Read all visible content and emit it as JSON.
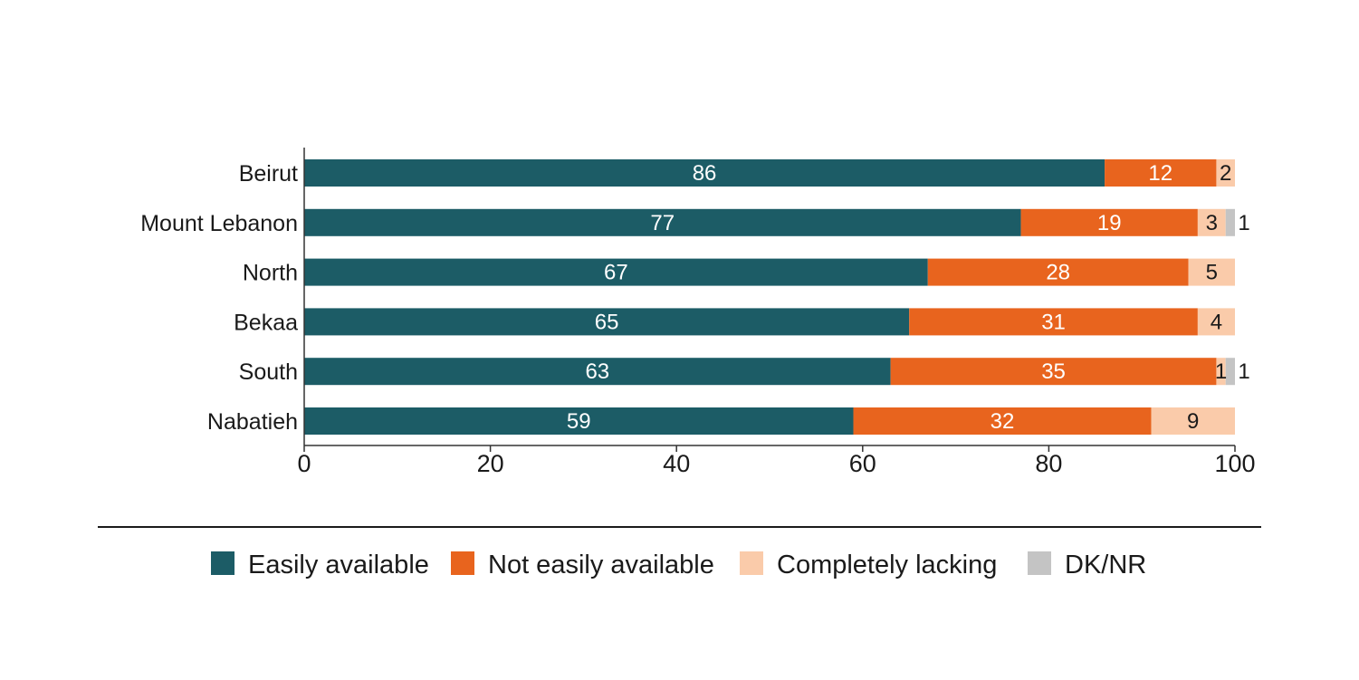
{
  "chart_data": {
    "type": "bar",
    "orientation": "horizontal",
    "stacked": true,
    "title": "",
    "xlabel": "",
    "ylabel": "",
    "xlim": [
      0,
      100
    ],
    "ticks": [
      "0",
      "20",
      "40",
      "60",
      "80",
      "100"
    ],
    "tick_values": [
      0,
      20,
      40,
      60,
      80,
      100
    ],
    "categories": [
      "Beirut",
      "Mount Lebanon",
      "North",
      "Bekaa",
      "South",
      "Nabatieh"
    ],
    "series": [
      {
        "name": "Easily available",
        "color": "#1c5c66",
        "text_color": "#ffffff",
        "values": [
          86,
          77,
          67,
          65,
          63,
          59
        ],
        "labels": [
          "86",
          "77",
          "67",
          "65",
          "63",
          "59"
        ]
      },
      {
        "name": "Not easily available",
        "color": "#e8641e",
        "text_color": "#ffffff",
        "values": [
          12,
          19,
          28,
          31,
          35,
          32
        ],
        "labels": [
          "12",
          "19",
          "28",
          "31",
          "35",
          "32"
        ]
      },
      {
        "name": "Completely lacking",
        "color": "#facbaa",
        "text_color": "#1a1a1a",
        "values": [
          2,
          3,
          5,
          4,
          1,
          9
        ],
        "labels": [
          "2",
          "3",
          "5",
          "4",
          "1",
          "9"
        ]
      },
      {
        "name": "DK/NR",
        "color": "#c4c4c4",
        "text_color": "#1a1a1a",
        "values": [
          0,
          1,
          0,
          0,
          1,
          0
        ],
        "labels": [
          "",
          "1",
          "",
          "",
          "1",
          ""
        ]
      }
    ],
    "grid": false,
    "legend_position": "bottom"
  }
}
